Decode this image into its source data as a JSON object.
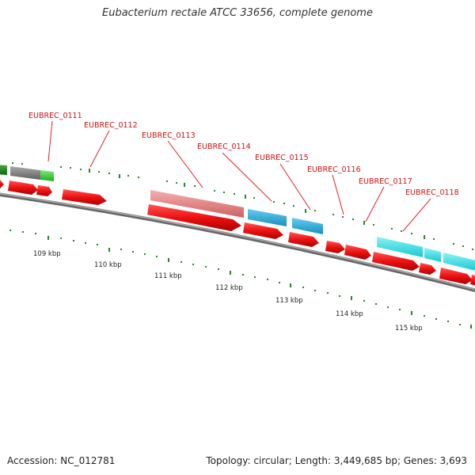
{
  "title": "Eubacterium rectale ATCC 33656, complete genome",
  "footer": {
    "accession": "Accession: NC_012781",
    "topology": "Topology: circular; Length: 3,449,685 bp; Genes: 3,693"
  },
  "colors": {
    "backbone": "#7a7a7a",
    "forward_gene": "#ee1111",
    "reverse_gene_pink": "#e88080",
    "reverse_gene_blue": "#22aadd",
    "reverse_gene_cyan": "#22dddd",
    "reverse_gene_gray": "#808080",
    "reverse_gene_green": "#33bb33",
    "tick": "#228822",
    "label": "#cc1111"
  },
  "gene_labels": [
    "EUBREC_0111",
    "EUBREC_0112",
    "EUBREC_0113",
    "EUBREC_0114",
    "EUBREC_0115",
    "EUBREC_0116",
    "EUBREC_0117",
    "EUBREC_0118"
  ],
  "scale_labels": [
    "109 kbp",
    "110 kbp",
    "111 kbp",
    "112 kbp",
    "113 kbp",
    "114 kbp",
    "115 kbp"
  ]
}
